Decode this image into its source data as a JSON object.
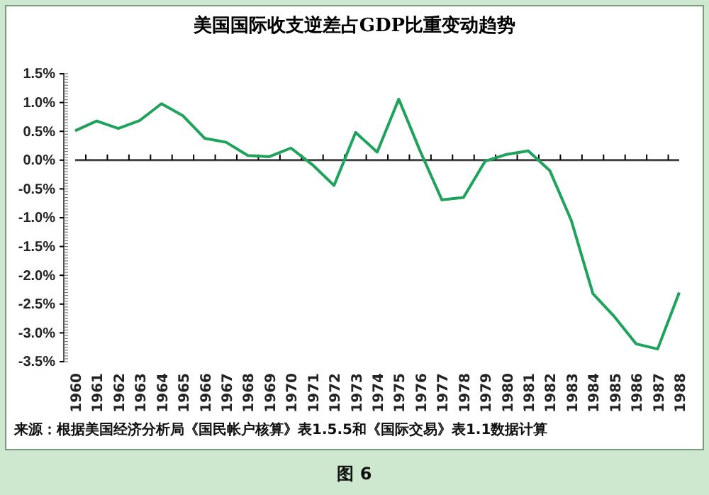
{
  "chart_data": {
    "type": "line",
    "title": "美国国际收支逆差占GDP比重变动趋势",
    "categories": [
      "1960",
      "1961",
      "1962",
      "1963",
      "1964",
      "1965",
      "1966",
      "1967",
      "1968",
      "1969",
      "1970",
      "1971",
      "1972",
      "1973",
      "1974",
      "1975",
      "1976",
      "1977",
      "1978",
      "1979",
      "1980",
      "1981",
      "1982",
      "1983",
      "1984",
      "1985",
      "1986",
      "1987",
      "1988"
    ],
    "series": [
      {
        "color": "#1fa35c",
        "values": [
          0.51,
          0.68,
          0.55,
          0.69,
          0.98,
          0.77,
          0.38,
          0.31,
          0.08,
          0.06,
          0.21,
          -0.08,
          -0.44,
          0.48,
          0.14,
          1.06,
          0.15,
          -0.69,
          -0.65,
          -0.02,
          0.1,
          0.16,
          -0.18,
          -1.05,
          -2.32,
          -2.72,
          -3.19,
          -3.28,
          -2.3
        ]
      }
    ],
    "ylim": [
      -3.5,
      1.5
    ],
    "yticks": [
      {
        "value": 1.5,
        "label": "1.5%"
      },
      {
        "value": 1,
        "label": "1.0%"
      },
      {
        "value": 0.5,
        "label": "0.5%"
      },
      {
        "value": 0,
        "label": "0.0%"
      },
      {
        "value": -0.5,
        "label": "-0.5%"
      },
      {
        "value": -1,
        "label": "-1.0%"
      },
      {
        "value": -1.5,
        "label": "-1.5%"
      },
      {
        "value": -2,
        "label": "-2.0%"
      },
      {
        "value": -2.5,
        "label": "-2.5%"
      },
      {
        "value": -3,
        "label": "-3.0%"
      },
      {
        "value": -3.5,
        "label": "-3.5%"
      }
    ],
    "marker": "none",
    "line_style": "solid",
    "annotations": [
      "来源：根据美国经济分析局《国民帐户核算》表1.5.5和《国际交易》表1.1数据计算",
      "图 6"
    ]
  }
}
